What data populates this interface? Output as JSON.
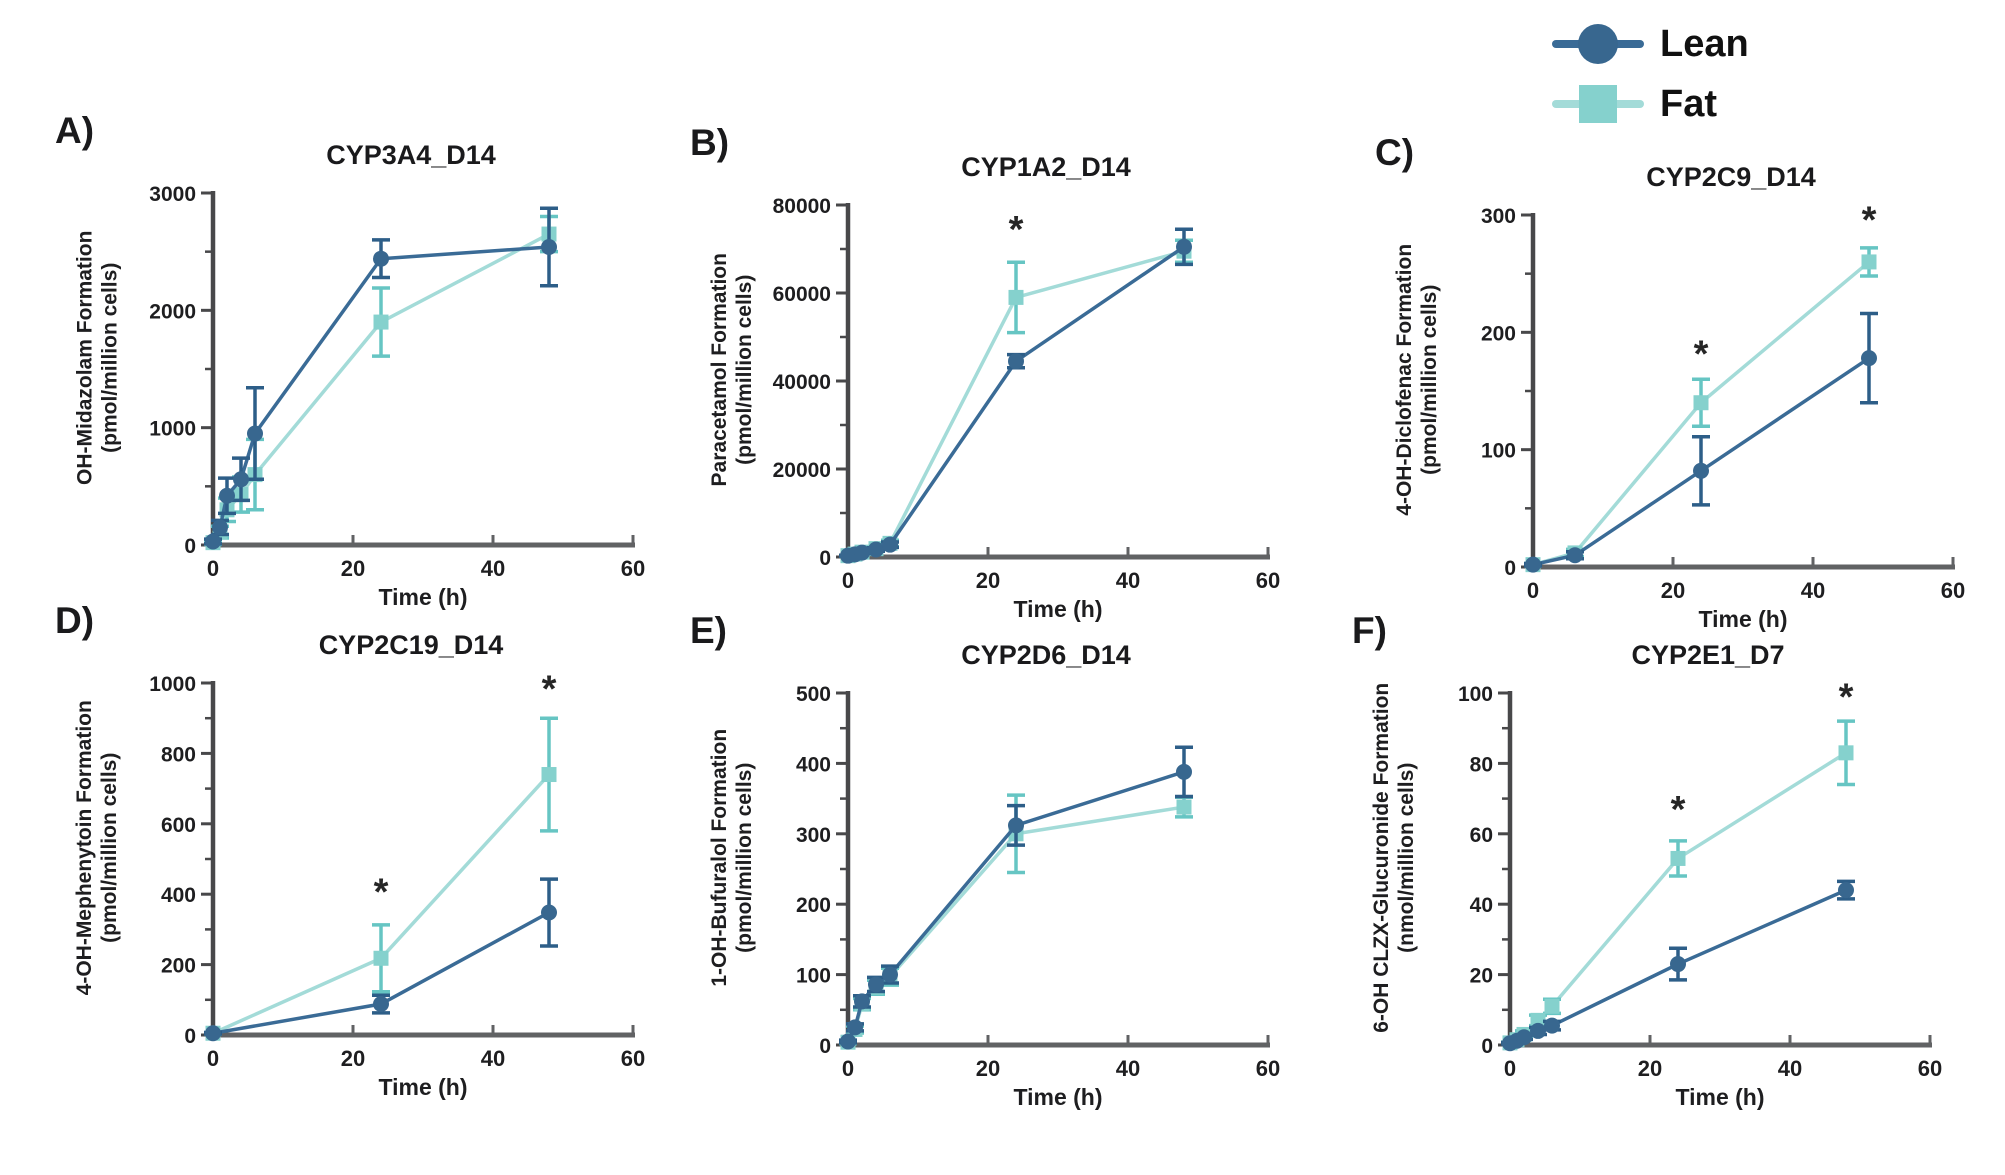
{
  "legend": {
    "items": [
      {
        "label": "Lean",
        "marker": "circle"
      },
      {
        "label": "Fat",
        "marker": "square"
      }
    ]
  },
  "colors": {
    "lean_line": "#3a6b96",
    "lean_marker": "#38678f",
    "lean_error": "#2d5e88",
    "fat_line": "#a3dbd8",
    "fat_marker": "#85d1cd",
    "fat_error": "#66c5c3",
    "axis_y": "#48484a",
    "axis_x": "#616264",
    "tick_text": "#1e1e20",
    "star": "#262626"
  },
  "chart_data": [
    {
      "type": "line",
      "panel": "A)",
      "title": "CYP3A4_D14",
      "ylabel": "OH-Midazolam Formation",
      "yunit": "(pmol/million cells)",
      "xlabel": "Time (h)",
      "xlim": [
        0,
        60
      ],
      "xticks": [
        0,
        20,
        40,
        60
      ],
      "ylim": [
        0,
        3000
      ],
      "yticks": [
        0,
        1000,
        2000,
        3000
      ],
      "x": [
        0,
        1,
        2,
        4,
        6,
        24,
        48
      ],
      "series": [
        {
          "name": "Lean",
          "values": [
            30,
            150,
            420,
            560,
            950,
            2440,
            2540
          ],
          "errors": [
            20,
            60,
            150,
            180,
            390,
            160,
            330
          ]
        },
        {
          "name": "Fat",
          "values": [
            20,
            110,
            300,
            430,
            600,
            1900,
            2650
          ],
          "errors": [
            15,
            50,
            100,
            150,
            300,
            290,
            150
          ]
        }
      ],
      "stars": []
    },
    {
      "type": "line",
      "panel": "B)",
      "title": "CYP1A2_D14",
      "ylabel": "Paracetamol Formation",
      "yunit": "(pmol/million cells)",
      "xlabel": "Time (h)",
      "xlim": [
        0,
        60
      ],
      "xticks": [
        0,
        20,
        40,
        60
      ],
      "ylim": [
        0,
        80000
      ],
      "yticks": [
        0,
        20000,
        40000,
        60000,
        80000
      ],
      "x": [
        0,
        1,
        2,
        4,
        6,
        24,
        48
      ],
      "series": [
        {
          "name": "Lean",
          "values": [
            300,
            600,
            1000,
            1700,
            2800,
            44500,
            70500
          ],
          "errors": [
            100,
            150,
            250,
            400,
            600,
            1500,
            4000
          ]
        },
        {
          "name": "Fat",
          "values": [
            300,
            650,
            1100,
            1900,
            3100,
            59000,
            69500
          ],
          "errors": [
            100,
            150,
            250,
            400,
            700,
            8000,
            2500
          ]
        }
      ],
      "stars": [
        {
          "x": 24,
          "y": 74500
        }
      ]
    },
    {
      "type": "line",
      "panel": "C)",
      "title": "CYP2C9_D14",
      "ylabel": "4-OH-Diclofenac Formation",
      "yunit": "(pmol/million cells)",
      "xlabel": "Time (h)",
      "xlim": [
        0,
        60
      ],
      "xticks": [
        0,
        20,
        40,
        60
      ],
      "ylim": [
        0,
        300
      ],
      "yticks": [
        0,
        100,
        200,
        300
      ],
      "x": [
        0,
        6,
        24,
        48
      ],
      "series": [
        {
          "name": "Lean",
          "values": [
            2,
            10,
            82,
            178
          ],
          "errors": [
            1,
            3,
            29,
            38
          ]
        },
        {
          "name": "Fat",
          "values": [
            2,
            12,
            140,
            260
          ],
          "errors": [
            1,
            3,
            20,
            12
          ]
        }
      ],
      "stars": [
        {
          "x": 24,
          "y": 182
        },
        {
          "x": 48,
          "y": 296
        }
      ]
    },
    {
      "type": "line",
      "panel": "D)",
      "title": "CYP2C19_D14",
      "ylabel": "4-OH-Mephenytoin Formation",
      "yunit": "(pmol/million cells)",
      "xlabel": "Time (h)",
      "xlim": [
        0,
        60
      ],
      "xticks": [
        0,
        20,
        40,
        60
      ],
      "ylim": [
        0,
        1000
      ],
      "yticks": [
        0,
        200,
        400,
        600,
        800,
        1000
      ],
      "x": [
        0,
        24,
        48
      ],
      "series": [
        {
          "name": "Lean",
          "values": [
            5,
            88,
            348
          ],
          "errors": [
            2,
            25,
            95
          ]
        },
        {
          "name": "Fat",
          "values": [
            5,
            218,
            740
          ],
          "errors": [
            2,
            95,
            160
          ]
        }
      ],
      "stars": [
        {
          "x": 24,
          "y": 408
        },
        {
          "x": 48,
          "y": 985
        }
      ]
    },
    {
      "type": "line",
      "panel": "E)",
      "title": "CYP2D6_D14",
      "ylabel": "1-OH-Bufuralol Formation",
      "yunit": "(pmol/million cells)",
      "xlabel": "Time (h)",
      "xlim": [
        0,
        60
      ],
      "xticks": [
        0,
        20,
        40,
        60
      ],
      "ylim": [
        0,
        500
      ],
      "yticks": [
        0,
        100,
        200,
        300,
        400,
        500
      ],
      "x": [
        0,
        1,
        2,
        4,
        6,
        24,
        48
      ],
      "series": [
        {
          "name": "Lean",
          "values": [
            5,
            25,
            62,
            86,
            100,
            312,
            388
          ],
          "errors": [
            2,
            5,
            8,
            10,
            12,
            28,
            35
          ]
        },
        {
          "name": "Fat",
          "values": [
            4,
            22,
            58,
            82,
            97,
            300,
            338
          ],
          "errors": [
            2,
            5,
            8,
            10,
            12,
            55,
            14
          ]
        }
      ],
      "stars": []
    },
    {
      "type": "line",
      "panel": "F)",
      "title": "CYP2E1_D7",
      "ylabel": "6-OH CLZX-Glucuronide Formation",
      "yunit": "(nmol/million cells)",
      "xlabel": "Time (h)",
      "xlim": [
        0,
        60
      ],
      "xticks": [
        0,
        20,
        40,
        60
      ],
      "ylim": [
        0,
        100
      ],
      "yticks": [
        0,
        20,
        40,
        60,
        80,
        100
      ],
      "x": [
        0,
        1,
        2,
        4,
        6,
        24,
        48
      ],
      "series": [
        {
          "name": "Lean",
          "values": [
            0.5,
            1.2,
            2.2,
            4,
            5.5,
            23,
            44
          ],
          "errors": [
            0.2,
            0.4,
            0.6,
            1,
            1.2,
            4.5,
            2.5
          ]
        },
        {
          "name": "Fat",
          "values": [
            0.6,
            1.5,
            3,
            7,
            11,
            53,
            83
          ],
          "errors": [
            0.2,
            0.5,
            1,
            1.5,
            2,
            5,
            9
          ]
        }
      ],
      "stars": [
        {
          "x": 24,
          "y": 67
        },
        {
          "x": 48,
          "y": 99
        }
      ]
    }
  ]
}
